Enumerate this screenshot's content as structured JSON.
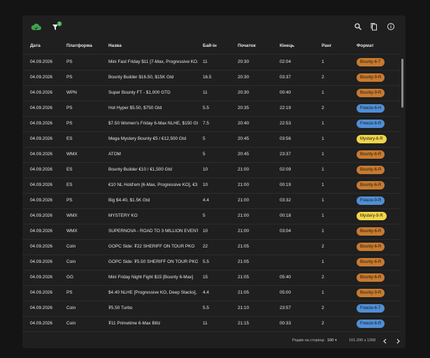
{
  "table": {
    "columns": [
      "Дата",
      "Платформа",
      "Назва",
      "Бай-ін",
      "Початок",
      "Кінець",
      "Ранг",
      "Формат"
    ],
    "rows": [
      {
        "date": "04.09.2026",
        "platform": "PS",
        "name": "Mini Fast Friday $11 [7-Max, Progressive KO...",
        "buyin": 11,
        "start": "20:30",
        "end": "02:04",
        "rank": 1,
        "format": "Bounty-6-T"
      },
      {
        "date": "04.09.2026",
        "platform": "PS",
        "name": "Bounty Builder $16.50, $15K Gtd",
        "buyin": 16.5,
        "start": "20:30",
        "end": "03:37",
        "rank": 2,
        "format": "Bounty-9-R"
      },
      {
        "date": "04.09.2026",
        "platform": "WPN",
        "name": "Super Bounty FT - $1,000 GTD",
        "buyin": 11,
        "start": "20:30",
        "end": "00:40",
        "rank": 1,
        "format": "Bounty-9-R"
      },
      {
        "date": "04.09.2026",
        "platform": "PS",
        "name": "Hot Hyper $5.50, $750 Gtd",
        "buyin": 5.5,
        "start": "20:35",
        "end": "22:19",
        "rank": 2,
        "format": "Freeze-6-H"
      },
      {
        "date": "04.09.2026",
        "platform": "PS",
        "name": "$7.50 Women's Friday 6-Max NLHE, $150 Gtd",
        "buyin": 7.5,
        "start": "20:40",
        "end": "22:53",
        "rank": 1,
        "format": "Freeze-6-R"
      },
      {
        "date": "04.09.2026",
        "platform": "ES",
        "name": "Mega Mystery Bounty €5 / €12,500 Gtd",
        "buyin": 5,
        "start": "20:45",
        "end": "03:56",
        "rank": 1,
        "format": "Mystery-6-R"
      },
      {
        "date": "04.09.2026",
        "platform": "WMX",
        "name": "ATOM",
        "buyin": 5,
        "start": "20:45",
        "end": "23:37",
        "rank": 1,
        "format": "Bounty-6-R"
      },
      {
        "date": "04.09.2026",
        "platform": "ES",
        "name": "Bounty Builder €10 / €1,500 Gtd",
        "buyin": 10,
        "start": "21:00",
        "end": "02:09",
        "rank": 1,
        "format": "Bounty-6-R"
      },
      {
        "date": "04.09.2026",
        "platform": "ES",
        "name": "€10 NL Hold'em [6-Max, Progressive KO], €3...",
        "buyin": 10,
        "start": "21:00",
        "end": "00:19",
        "rank": 1,
        "format": "Bounty-6-R"
      },
      {
        "date": "04.09.2026",
        "platform": "PS",
        "name": "Big $4.40, $1.5K Gtd",
        "buyin": 4.4,
        "start": "21:00",
        "end": "03:32",
        "rank": 1,
        "format": "Freeze-9-R"
      },
      {
        "date": "04.09.2026",
        "platform": "WMX",
        "name": "MYSTERY KO",
        "buyin": 5,
        "start": "21:00",
        "end": "00:18",
        "rank": 1,
        "format": "Mystery-9-R"
      },
      {
        "date": "04.09.2026",
        "platform": "WMX",
        "name": "SUPERNOVA - ROAD TO 3 MILLION EVENT",
        "buyin": 10,
        "start": "21:00",
        "end": "03:04",
        "rank": 1,
        "format": "Bounty-6-R"
      },
      {
        "date": "04.09.2026",
        "platform": "Coin",
        "name": "GOPC Side: ₮22 SHERIFF ON TOUR PKO",
        "buyin": 22,
        "start": "21:05",
        "rank": 2,
        "format": "Bounty-6-R"
      },
      {
        "date": "04.09.2026",
        "platform": "Coin",
        "name": "GOPC Side: ₮5.50 SHERIFF ON TOUR PKO",
        "buyin": 5.5,
        "start": "21:05",
        "rank": 1,
        "format": "Bounty-6-R"
      },
      {
        "date": "04.09.2026",
        "platform": "GG",
        "name": "Mini Friday Night Fight $15 [Bounty 6-Max]",
        "buyin": 15,
        "start": "21:05",
        "end": "05:40",
        "rank": 2,
        "format": "Bounty-6-R"
      },
      {
        "date": "04.09.2026",
        "platform": "PS",
        "name": "$4.40 NLHE [Progressive KO, Deep Stacks], ...",
        "buyin": 4.4,
        "start": "21:05",
        "end": "05:00",
        "rank": 1,
        "format": "Bounty-9-R"
      },
      {
        "date": "04.09.2026",
        "platform": "Coin",
        "name": "₮5.50 Turbo",
        "buyin": 5.5,
        "start": "21:10",
        "end": "23:57",
        "rank": 2,
        "format": "Freeze-6-T"
      },
      {
        "date": "04.09.2026",
        "platform": "Coin",
        "name": "₮11 Primetime 6-Max Blitz",
        "buyin": 11,
        "start": "21:15",
        "end": "00:33",
        "rank": 2,
        "format": "Freeze-6-R"
      }
    ]
  },
  "toolbar": {
    "filter_badge": "2"
  },
  "footer": {
    "rows_per_page_label": "Рядків на сторінці:",
    "rows_per_page": 100,
    "range": "101-200 з 1268"
  }
}
